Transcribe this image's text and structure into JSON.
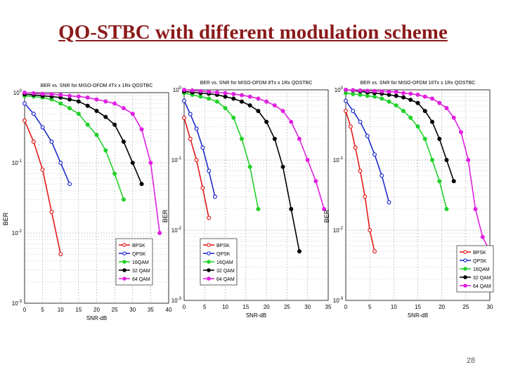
{
  "slide": {
    "title": "QO-STBC with different modulation scheme",
    "page_number": "28"
  },
  "chart_data": [
    {
      "type": "line",
      "title": "BER vs. SNR for MISO-OFDM 4Tx x 1Rx QOSTBC",
      "xlabel": "SNR-dB",
      "ylabel": "BER",
      "yscale": "log",
      "xlim": [
        0,
        40
      ],
      "ylim": [
        0.001,
        1
      ],
      "xticks": [
        "0",
        "5",
        "10",
        "15",
        "20",
        "25",
        "30",
        "35",
        "40"
      ],
      "yticks": [
        "10^0",
        "10^-1",
        "10^-2",
        "10^-3"
      ],
      "grid": true,
      "legend": "bottom-right",
      "series": [
        {
          "name": "BPSK",
          "color": "#e41a1a",
          "x": [
            0,
            2.5,
            5,
            7.5,
            10
          ],
          "y": [
            0.4,
            0.2,
            0.08,
            0.02,
            0.005
          ]
        },
        {
          "name": "QPSK",
          "color": "#1f2dcc",
          "x": [
            0,
            2.5,
            5,
            7.5,
            10,
            12.5
          ],
          "y": [
            0.7,
            0.5,
            0.32,
            0.2,
            0.1,
            0.05
          ]
        },
        {
          "name": "16QAM",
          "color": "#22d12a",
          "x": [
            0,
            2.5,
            5,
            7.5,
            10,
            12.5,
            15,
            17.5,
            20,
            22.5,
            25,
            27.5
          ],
          "y": [
            0.9,
            0.88,
            0.85,
            0.8,
            0.7,
            0.6,
            0.5,
            0.35,
            0.25,
            0.15,
            0.07,
            0.03
          ]
        },
        {
          "name": "32 QAM",
          "color": "#000000",
          "x": [
            0,
            2.5,
            5,
            7.5,
            10,
            12.5,
            15,
            17.5,
            20,
            22.5,
            25,
            27.5,
            30,
            32.5
          ],
          "y": [
            0.95,
            0.93,
            0.9,
            0.88,
            0.85,
            0.8,
            0.75,
            0.65,
            0.55,
            0.45,
            0.35,
            0.2,
            0.1,
            0.05
          ]
        },
        {
          "name": "64 QAM",
          "color": "#e020e0",
          "x": [
            0,
            2.5,
            5,
            7.5,
            10,
            12.5,
            15,
            17.5,
            20,
            22.5,
            25,
            27.5,
            30,
            32.5,
            35,
            37.5
          ],
          "y": [
            1.0,
            0.98,
            0.96,
            0.95,
            0.93,
            0.9,
            0.88,
            0.85,
            0.8,
            0.75,
            0.7,
            0.6,
            0.5,
            0.3,
            0.1,
            0.01
          ]
        }
      ]
    },
    {
      "type": "line",
      "title": "BER vs. SNR for MISO-OFDM 8Tx x 1Rx QOSTBC",
      "xlabel": "SNR-dB",
      "ylabel": "BER",
      "yscale": "log",
      "xlim": [
        0,
        35
      ],
      "ylim": [
        0.001,
        1
      ],
      "xticks": [
        "0",
        "5",
        "10",
        "15",
        "20",
        "25",
        "30",
        "35"
      ],
      "yticks": [
        "10^0",
        "10^-1",
        "10^-2",
        "10^-3"
      ],
      "grid": true,
      "legend": "bottom-left",
      "series": [
        {
          "name": "BPSK",
          "color": "#e41a1a",
          "x": [
            0,
            1.5,
            3,
            4.5,
            6
          ],
          "y": [
            0.4,
            0.2,
            0.1,
            0.04,
            0.015
          ]
        },
        {
          "name": "QPSK",
          "color": "#1f2dcc",
          "x": [
            0,
            1.5,
            3,
            4.5,
            6,
            7.5
          ],
          "y": [
            0.7,
            0.45,
            0.28,
            0.15,
            0.07,
            0.03
          ]
        },
        {
          "name": "16QAM",
          "color": "#22d12a",
          "x": [
            0,
            2,
            4,
            6,
            8,
            10,
            12,
            14,
            16,
            18
          ],
          "y": [
            0.9,
            0.85,
            0.8,
            0.75,
            0.68,
            0.55,
            0.4,
            0.2,
            0.08,
            0.02
          ]
        },
        {
          "name": "32 QAM",
          "color": "#000000",
          "x": [
            0,
            2,
            4,
            6,
            8,
            10,
            12,
            14,
            16,
            18,
            20,
            22,
            24,
            26,
            28
          ],
          "y": [
            0.95,
            0.92,
            0.9,
            0.88,
            0.85,
            0.8,
            0.75,
            0.68,
            0.6,
            0.5,
            0.35,
            0.2,
            0.08,
            0.02,
            0.005
          ]
        },
        {
          "name": "64 QAM",
          "color": "#e020e0",
          "x": [
            0,
            2,
            4,
            6,
            8,
            10,
            12,
            14,
            16,
            18,
            20,
            22,
            24,
            26,
            28,
            30,
            32,
            34
          ],
          "y": [
            1.0,
            0.98,
            0.96,
            0.94,
            0.92,
            0.9,
            0.87,
            0.84,
            0.8,
            0.75,
            0.68,
            0.6,
            0.5,
            0.35,
            0.2,
            0.1,
            0.05,
            0.02
          ]
        }
      ]
    },
    {
      "type": "line",
      "title": "BER vs. SNR for MISO-OFDM 16Tx x 1Rx QOSTBC",
      "xlabel": "SNR-dB",
      "ylabel": "BER",
      "yscale": "log",
      "xlim": [
        0,
        30
      ],
      "ylim": [
        0.001,
        1
      ],
      "xticks": [
        "0",
        "5",
        "10",
        "15",
        "20",
        "25",
        "30"
      ],
      "yticks": [
        "10^0",
        "10^-1",
        "10^-2",
        "10^-3"
      ],
      "grid": true,
      "legend": "bottom-right",
      "series": [
        {
          "name": "BPSK",
          "color": "#e41a1a",
          "x": [
            0,
            1,
            2,
            3,
            4,
            5,
            6
          ],
          "y": [
            0.5,
            0.3,
            0.15,
            0.07,
            0.03,
            0.01,
            0.005
          ]
        },
        {
          "name": "QPSK",
          "color": "#1f2dcc",
          "x": [
            0,
            1.5,
            3,
            4.5,
            6,
            7.5,
            9
          ],
          "y": [
            0.7,
            0.5,
            0.35,
            0.22,
            0.12,
            0.06,
            0.025
          ]
        },
        {
          "name": "16QAM",
          "color": "#22d12a",
          "x": [
            0,
            1.5,
            3,
            4.5,
            6,
            7.5,
            9,
            10.5,
            12,
            13.5,
            15,
            16.5,
            18,
            19.5,
            21
          ],
          "y": [
            0.9,
            0.87,
            0.85,
            0.82,
            0.8,
            0.75,
            0.68,
            0.6,
            0.5,
            0.4,
            0.3,
            0.2,
            0.1,
            0.05,
            0.02
          ]
        },
        {
          "name": "32 QAM",
          "color": "#000000",
          "x": [
            0,
            1.5,
            3,
            4.5,
            6,
            7.5,
            9,
            10.5,
            12,
            13.5,
            15,
            16.5,
            18,
            19.5,
            21,
            22.5
          ],
          "y": [
            1.0,
            0.98,
            0.95,
            0.92,
            0.9,
            0.88,
            0.85,
            0.82,
            0.78,
            0.72,
            0.65,
            0.5,
            0.35,
            0.2,
            0.1,
            0.05
          ]
        },
        {
          "name": "64 QAM",
          "color": "#e020e0",
          "x": [
            0,
            1.5,
            3,
            4.5,
            6,
            7.5,
            9,
            10.5,
            12,
            13.5,
            15,
            16.5,
            18,
            19.5,
            21,
            22.5,
            24,
            25.5,
            27,
            28.5,
            30
          ],
          "y": [
            1.0,
            0.99,
            0.98,
            0.97,
            0.96,
            0.95,
            0.94,
            0.93,
            0.9,
            0.88,
            0.85,
            0.8,
            0.75,
            0.65,
            0.55,
            0.4,
            0.25,
            0.1,
            0.02,
            0.008,
            0.005
          ]
        }
      ]
    }
  ]
}
